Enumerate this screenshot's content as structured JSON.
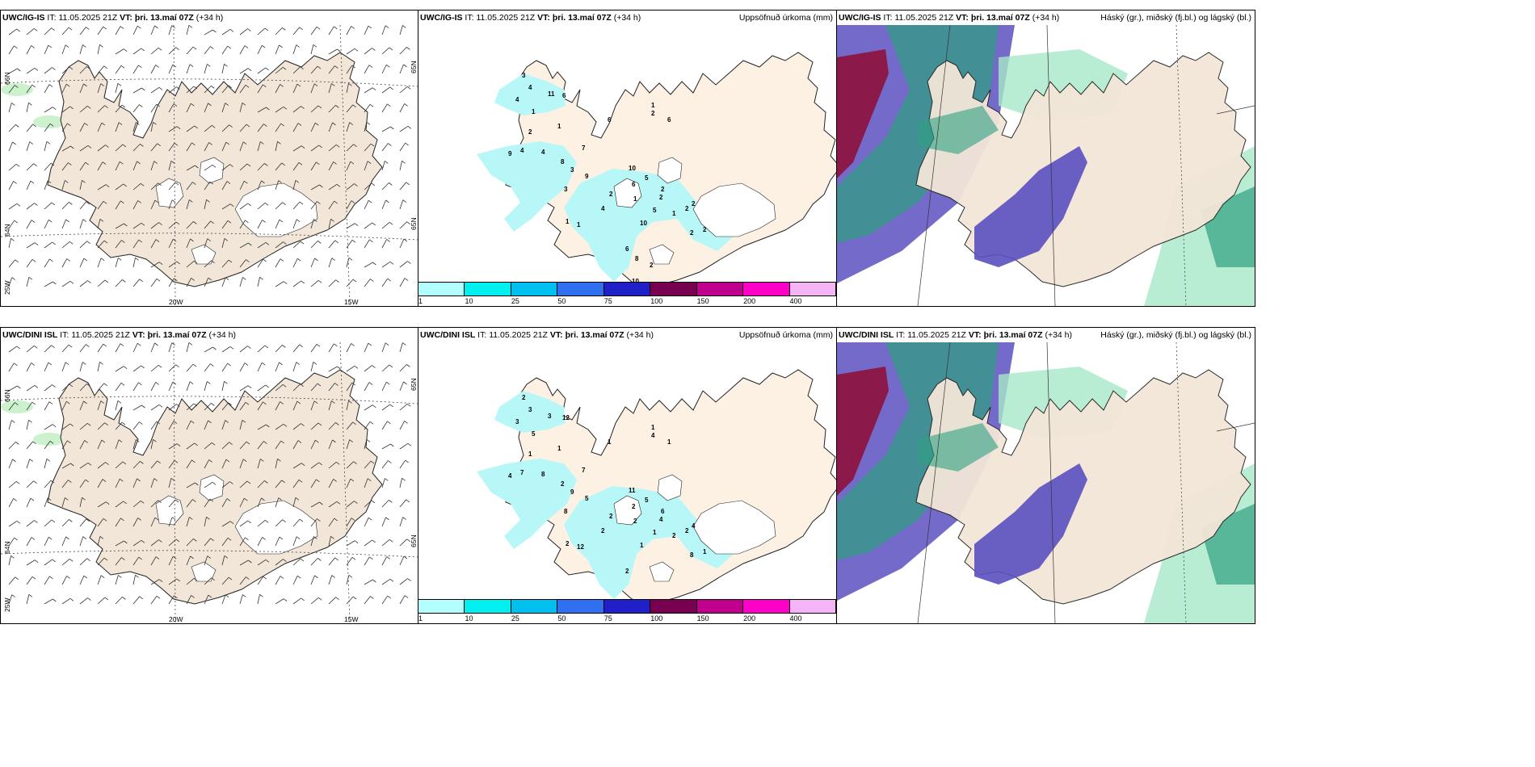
{
  "rows": [
    {
      "model": "UWC/IG-IS",
      "it_label": "IT:",
      "it_value": "11.05.2025 21Z",
      "vt_label": "VT:",
      "vt_value": "þri. 13.maí 07Z",
      "lead": "(+34 h)"
    },
    {
      "model": "UWC/DINI ISL",
      "it_label": "IT:",
      "it_value": "11.05.2025 21Z",
      "vt_label": "VT:",
      "vt_value": "þri. 13.maí 07Z",
      "lead": "(+34 h)"
    }
  ],
  "titles": {
    "precip": "Uppsöfnuð úrkoma (mm)",
    "cloud": "Háský (gr.), miðský (fj.bl.) og lágský (bl.)"
  },
  "grid_labels": {
    "lat66": "66N",
    "lat64": "64N",
    "lat65": "65N",
    "lon25": "25W",
    "lon20": "20W",
    "lon15": "15W"
  },
  "colorbar": {
    "colors": [
      "#b3ffff",
      "#00f0f0",
      "#00c0f0",
      "#3070f0",
      "#2020c8",
      "#780050",
      "#c0008c",
      "#ff00c8",
      "#f5b4f5"
    ],
    "labels": [
      "1",
      "10",
      "25",
      "50",
      "75",
      "100",
      "150",
      "200",
      "400"
    ]
  },
  "precip_numbers": [
    [
      "3",
      "4",
      "4",
      "11",
      "6",
      "1",
      "2",
      "1",
      "1",
      "2",
      "6",
      "6",
      "9",
      "4",
      "4",
      "7",
      "8",
      "3",
      "9",
      "10",
      "3",
      "5",
      "6",
      "2",
      "2",
      "1",
      "2",
      "4",
      "5",
      "10",
      "2",
      "1",
      "2",
      "6",
      "2",
      "2",
      "1",
      "1",
      "8",
      "2",
      "10"
    ],
    [
      "2",
      "3",
      "3",
      "3",
      "12",
      "5",
      "1",
      "1",
      "1",
      "4",
      "1",
      "1",
      "4",
      "7",
      "8",
      "7",
      "2",
      "9",
      "5",
      "11",
      "8",
      "5",
      "2",
      "6",
      "4",
      "2",
      "2",
      "2",
      "1",
      "1",
      "4",
      "2",
      "2",
      "2",
      "1",
      "8",
      "2",
      "12"
    ]
  ],
  "colors": {
    "land": "#f2e6d8",
    "land_precip": "#fdf1e4",
    "glacier": "#ffffff",
    "precip_light": "#b7f7f7",
    "cloud_high": "#8b1a4a",
    "cloud_mid": "#5a50c0",
    "cloud_low": "#2fa080",
    "cloud_low_light": "#a8e8c8"
  }
}
